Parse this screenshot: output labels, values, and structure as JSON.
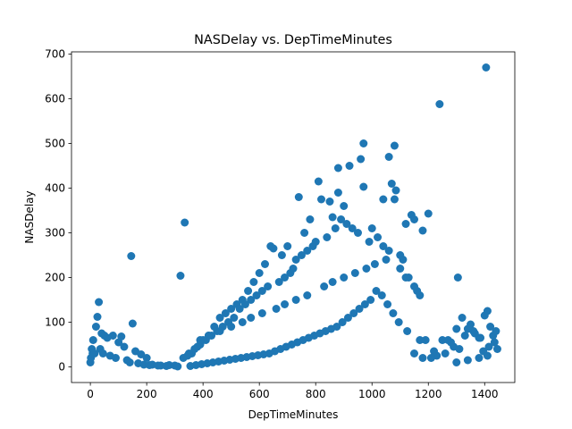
{
  "chart_data": {
    "type": "scatter",
    "title": "NASDelay vs. DepTimeMinutes",
    "xlabel": "DepTimeMinutes",
    "ylabel": "NASDelay",
    "xlim": [
      -67,
      1507
    ],
    "ylim": [
      -35,
      705
    ],
    "xticks": [
      "0",
      "200",
      "400",
      "600",
      "800",
      "1000",
      "1200",
      "1400"
    ],
    "xtick_values": [
      0,
      200,
      400,
      600,
      800,
      1000,
      1200,
      1400
    ],
    "yticks": [
      "0",
      "100",
      "200",
      "300",
      "400",
      "500",
      "600",
      "700"
    ],
    "ytick_values": [
      0,
      100,
      200,
      300,
      400,
      500,
      600,
      700
    ],
    "grid": false,
    "marker_color": "#1f77b4",
    "series": [
      {
        "x": [
          1405,
          1240,
          970,
          1080,
          960,
          1060,
          1070,
          920,
          880,
          810,
          1085,
          1080,
          970,
          1040,
          335,
          145,
          1200,
          1305,
          320,
          880,
          850,
          900,
          860,
          820,
          1140,
          1150,
          1180,
          1120,
          740,
          760,
          780,
          700,
          680,
          650,
          640,
          620,
          600,
          580,
          560,
          540,
          520,
          500,
          480,
          460,
          440,
          420,
          400,
          380,
          360,
          1000,
          1020,
          1040,
          1060,
          1100,
          1110,
          1130,
          1160,
          1190,
          990,
          950,
          930,
          910,
          890,
          870,
          840,
          800,
          790,
          770,
          750,
          730,
          720,
          710,
          690,
          670,
          630,
          610,
          590,
          570,
          550,
          530,
          510,
          490,
          470,
          450,
          430,
          410,
          390,
          370,
          350,
          330,
          30,
          25,
          40,
          20,
          10,
          5,
          15,
          50,
          60,
          80,
          100,
          110,
          120,
          150,
          160,
          180,
          200,
          220,
          250,
          280,
          300,
          1250,
          1280,
          1300,
          1330,
          1360,
          1380,
          1400,
          1410,
          1420,
          1430,
          1440,
          1445,
          1350,
          1320,
          1290,
          1270,
          1230,
          1210,
          0,
          2,
          8,
          35,
          45,
          70,
          90,
          130,
          140,
          170,
          190,
          210,
          240,
          270,
          310,
          345,
          1395,
          1415,
          1435,
          1385,
          1365,
          1340,
          1310,
          1260,
          1220,
          1170,
          1125,
          1095,
          1075,
          1055,
          1035,
          1015,
          995,
          975,
          955,
          935,
          915,
          895,
          875,
          855,
          835,
          815,
          795,
          775,
          755,
          735,
          715,
          695,
          675,
          655,
          635,
          615,
          595,
          575,
          555,
          535,
          515,
          495,
          475,
          455,
          435,
          415,
          395,
          375,
          355,
          1150,
          1170,
          1100,
          1120,
          1050,
          1010,
          980,
          940,
          900,
          860,
          830,
          770,
          730,
          690,
          660,
          610,
          570,
          540,
          500,
          460,
          420,
          390,
          1300,
          1340,
          1380,
          1410,
          1150,
          1180
        ],
        "y": [
          670,
          588,
          500,
          495,
          465,
          470,
          410,
          450,
          445,
          415,
          395,
          375,
          403,
          375,
          323,
          248,
          343,
          200,
          204,
          390,
          370,
          360,
          335,
          375,
          340,
          330,
          305,
          320,
          380,
          300,
          330,
          270,
          250,
          265,
          270,
          230,
          210,
          190,
          170,
          150,
          140,
          130,
          120,
          110,
          90,
          70,
          60,
          45,
          30,
          310,
          290,
          270,
          260,
          250,
          240,
          200,
          170,
          60,
          280,
          300,
          310,
          320,
          330,
          310,
          290,
          280,
          270,
          260,
          250,
          240,
          220,
          210,
          200,
          190,
          180,
          170,
          160,
          150,
          140,
          130,
          110,
          100,
          90,
          80,
          70,
          60,
          50,
          40,
          30,
          20,
          145,
          112,
          75,
          90,
          60,
          40,
          30,
          70,
          65,
          70,
          55,
          68,
          45,
          97,
          35,
          28,
          20,
          5,
          3,
          4,
          3,
          60,
          55,
          85,
          70,
          80,
          65,
          115,
          125,
          90,
          70,
          80,
          40,
          95,
          110,
          45,
          60,
          25,
          20,
          10,
          20,
          30,
          40,
          30,
          25,
          20,
          15,
          10,
          8,
          5,
          4,
          3,
          2,
          1,
          25,
          35,
          45,
          55,
          65,
          75,
          85,
          40,
          30,
          35,
          60,
          80,
          100,
          120,
          140,
          160,
          170,
          150,
          140,
          130,
          120,
          110,
          100,
          90,
          85,
          80,
          75,
          70,
          65,
          60,
          55,
          50,
          45,
          40,
          35,
          30,
          28,
          26,
          24,
          22,
          20,
          18,
          16,
          14,
          12,
          10,
          8,
          6,
          4,
          2,
          180,
          160,
          220,
          200,
          240,
          230,
          220,
          210,
          200,
          190,
          180,
          160,
          150,
          140,
          130,
          120,
          110,
          100,
          90,
          80,
          70,
          60,
          10,
          15,
          20,
          25,
          30,
          20
        ]
      }
    ]
  }
}
